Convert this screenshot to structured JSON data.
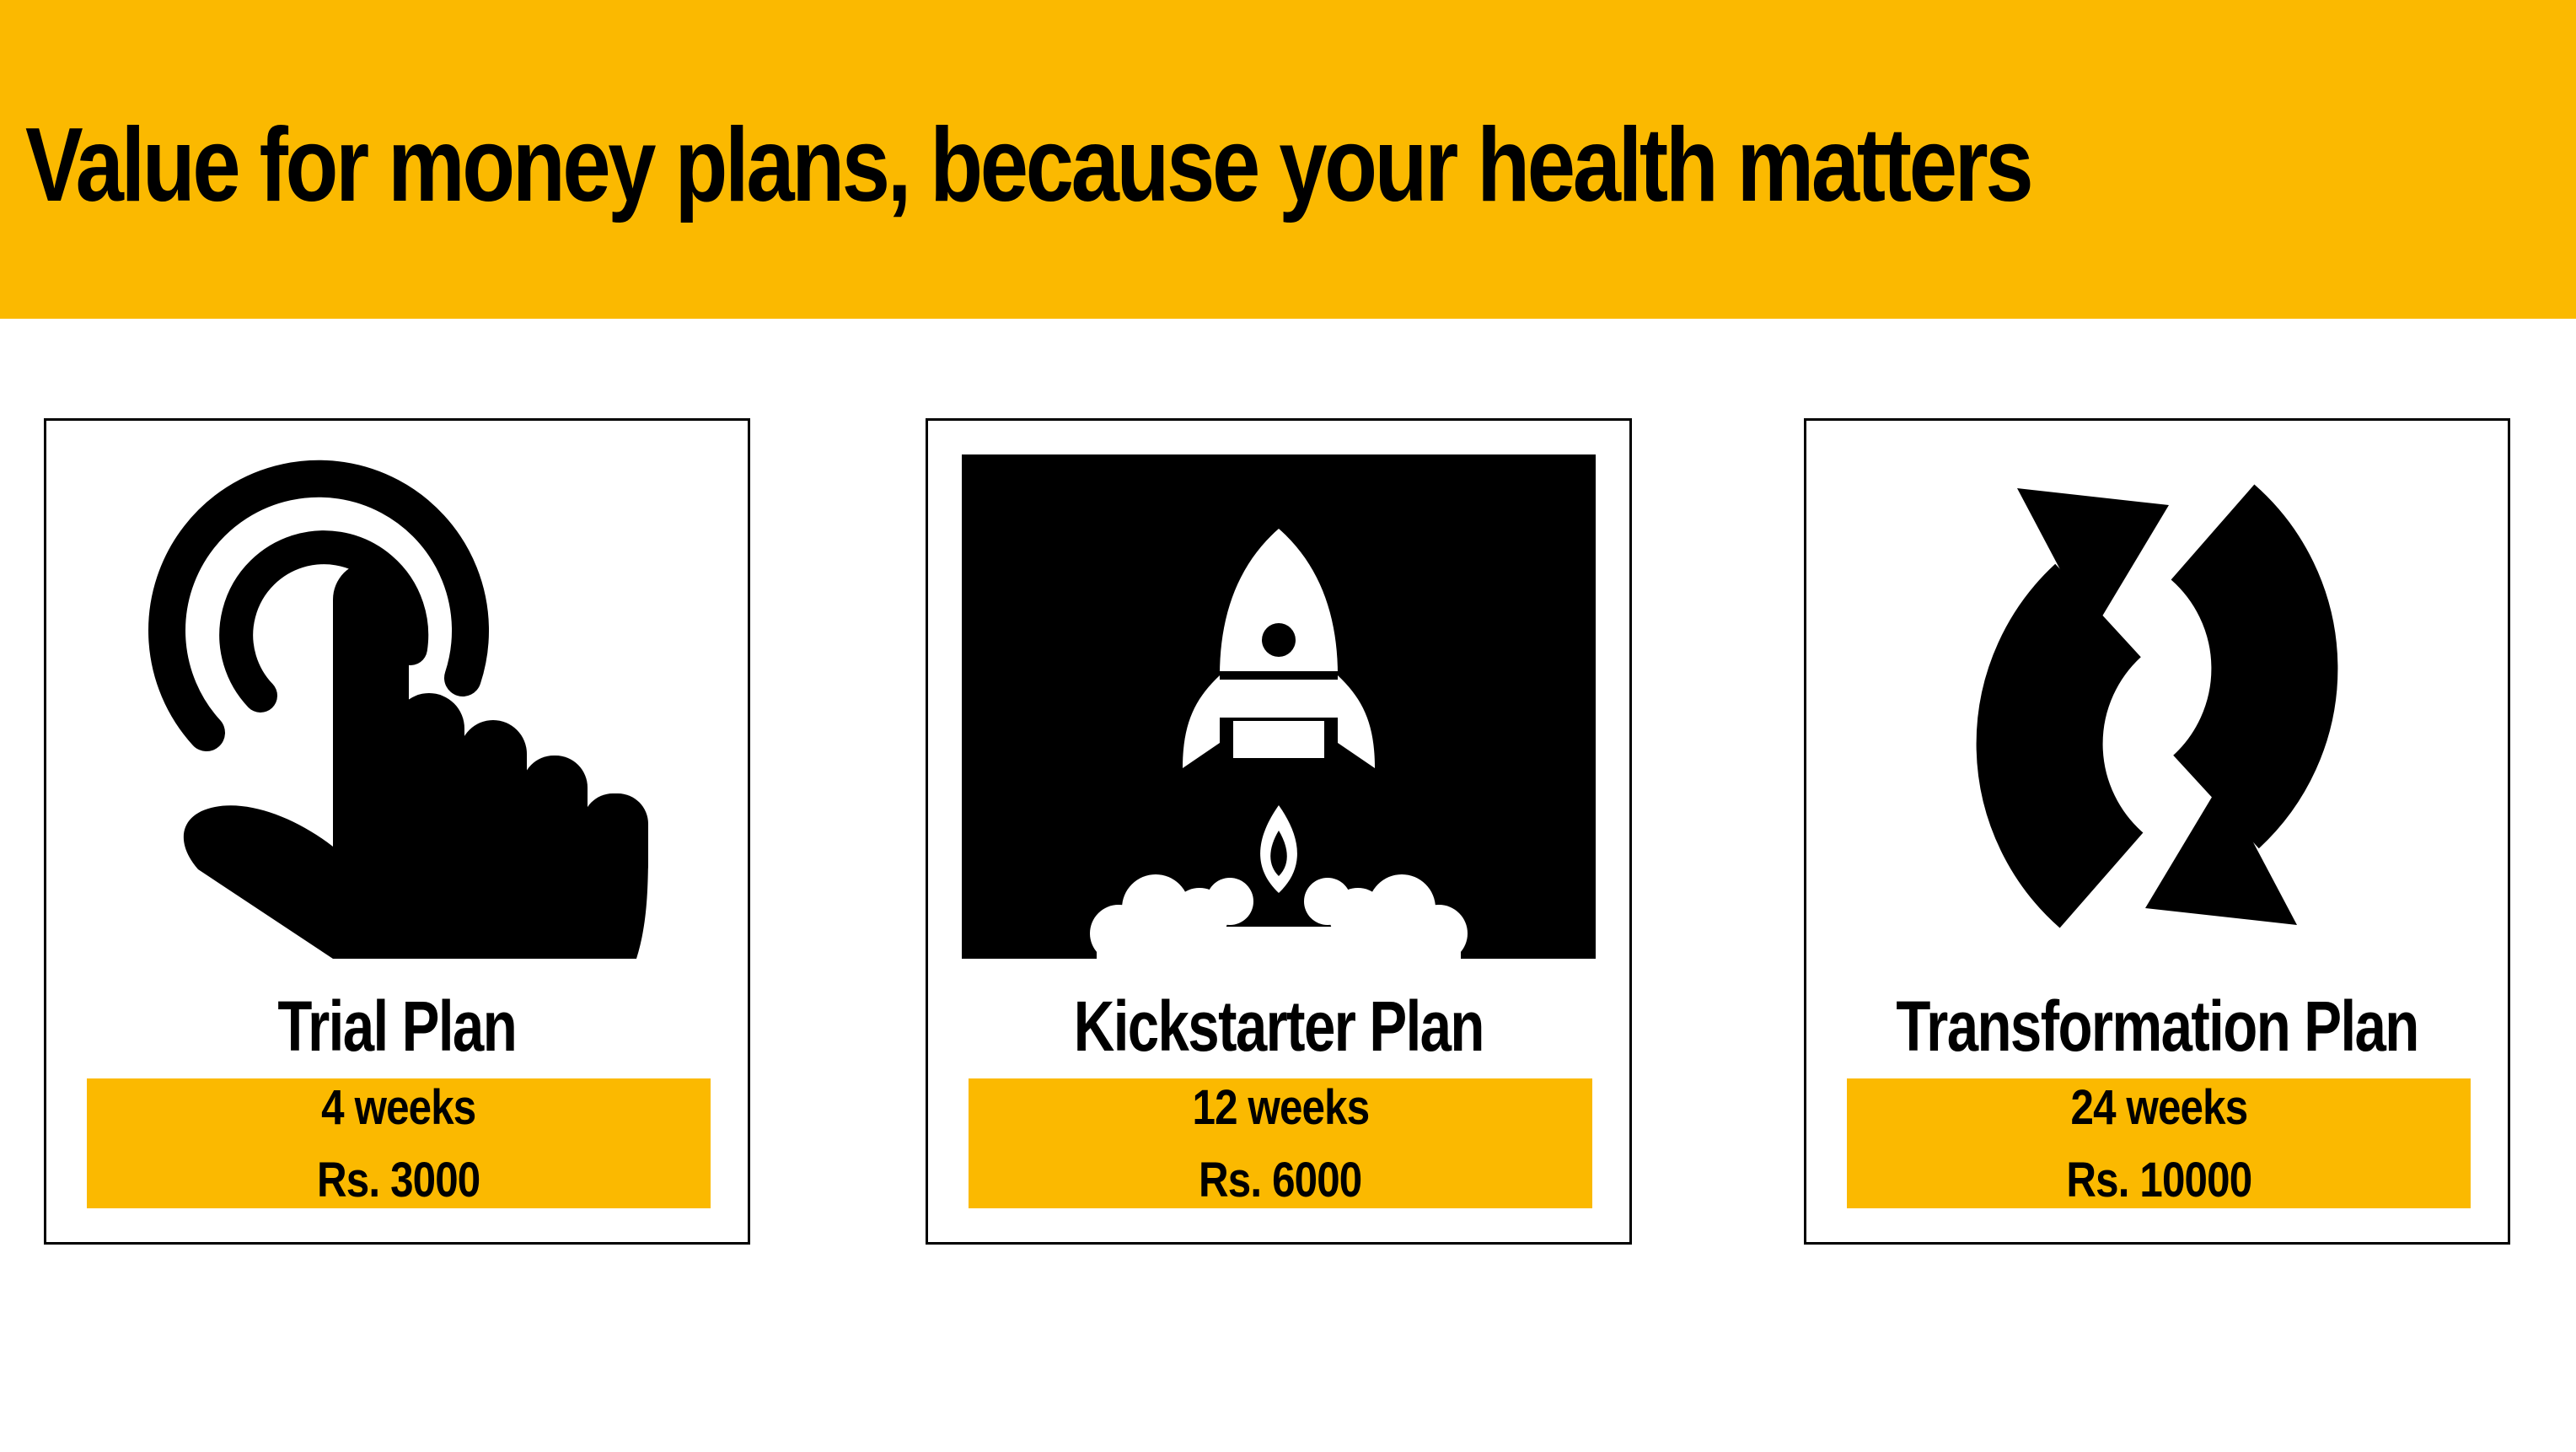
{
  "header": {
    "title": "Value for money plans, because your health matters"
  },
  "colors": {
    "accent": "#FBB900",
    "text": "#000000",
    "background": "#FFFFFF"
  },
  "plans": [
    {
      "name": "Trial Plan",
      "duration": "4 weeks",
      "price": "Rs. 3000",
      "icon": "tap-finger-icon"
    },
    {
      "name": "Kickstarter Plan",
      "duration": "12 weeks",
      "price": "Rs. 6000",
      "icon": "rocket-launch-icon"
    },
    {
      "name": "Transformation Plan",
      "duration": "24 weeks",
      "price": "Rs. 10000",
      "icon": "refresh-cycle-icon"
    }
  ]
}
